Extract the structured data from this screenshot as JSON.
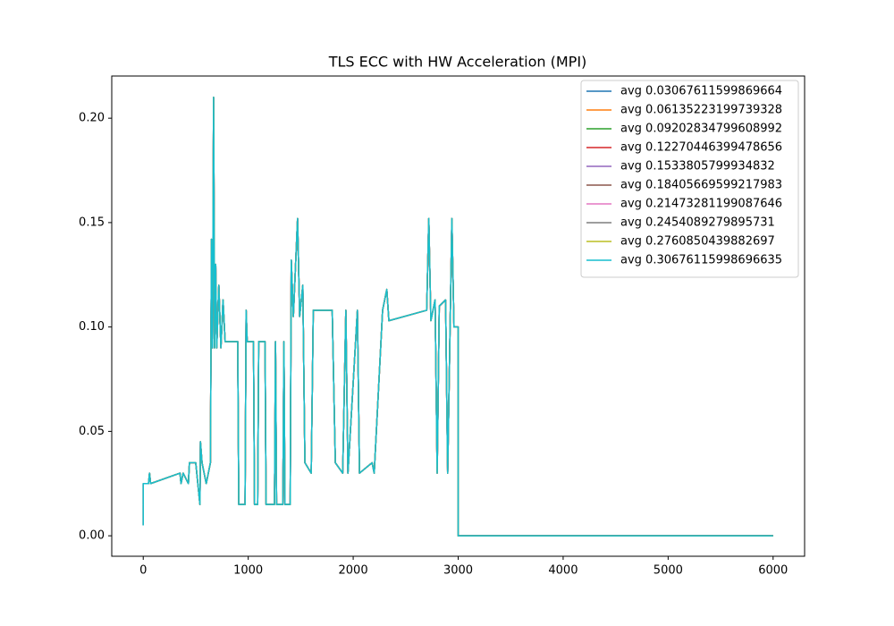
{
  "chart_data": {
    "type": "line",
    "title": "TLS ECC with HW Acceleration (MPI)",
    "x": [
      0,
      0,
      50,
      60,
      70,
      350,
      360,
      380,
      430,
      440,
      500,
      540,
      545,
      560,
      600,
      640,
      650,
      660,
      670,
      680,
      690,
      700,
      720,
      740,
      760,
      780,
      900,
      910,
      970,
      980,
      990,
      1050,
      1060,
      1090,
      1100,
      1160,
      1170,
      1250,
      1260,
      1270,
      1330,
      1340,
      1350,
      1400,
      1410,
      1430,
      1470,
      1490,
      1520,
      1540,
      1600,
      1620,
      1800,
      1830,
      1900,
      1930,
      1950,
      2040,
      2060,
      2180,
      2200,
      2280,
      2320,
      2340,
      2700,
      2720,
      2740,
      2780,
      2800,
      2820,
      2880,
      2900,
      2940,
      2960,
      3000,
      3000,
      6000
    ],
    "series": [
      {
        "name": "avg 0.03067611599869664",
        "color": "#1f77b4",
        "values": [
          0.005,
          0.025,
          0.025,
          0.03,
          0.025,
          0.03,
          0.025,
          0.03,
          0.025,
          0.035,
          0.035,
          0.015,
          0.045,
          0.035,
          0.025,
          0.035,
          0.142,
          0.09,
          0.21,
          0.09,
          0.13,
          0.09,
          0.12,
          0.09,
          0.113,
          0.093,
          0.093,
          0.015,
          0.015,
          0.108,
          0.093,
          0.093,
          0.015,
          0.015,
          0.093,
          0.093,
          0.015,
          0.015,
          0.093,
          0.015,
          0.015,
          0.093,
          0.015,
          0.015,
          0.132,
          0.105,
          0.152,
          0.105,
          0.12,
          0.035,
          0.03,
          0.108,
          0.108,
          0.035,
          0.03,
          0.108,
          0.03,
          0.108,
          0.03,
          0.035,
          0.03,
          0.108,
          0.118,
          0.103,
          0.108,
          0.152,
          0.103,
          0.113,
          0.03,
          0.11,
          0.113,
          0.03,
          0.152,
          0.1,
          0.1,
          0,
          0
        ]
      },
      {
        "name": "avg 0.06135223199739328",
        "color": "#ff7f0e",
        "values": [
          0.005,
          0.025,
          0.025,
          0.03,
          0.025,
          0.03,
          0.025,
          0.03,
          0.025,
          0.035,
          0.035,
          0.015,
          0.045,
          0.035,
          0.025,
          0.035,
          0.142,
          0.09,
          0.21,
          0.09,
          0.13,
          0.09,
          0.12,
          0.09,
          0.113,
          0.093,
          0.093,
          0.015,
          0.015,
          0.108,
          0.093,
          0.093,
          0.015,
          0.015,
          0.093,
          0.093,
          0.015,
          0.015,
          0.093,
          0.015,
          0.015,
          0.093,
          0.015,
          0.015,
          0.132,
          0.105,
          0.152,
          0.105,
          0.12,
          0.035,
          0.03,
          0.108,
          0.108,
          0.035,
          0.03,
          0.108,
          0.03,
          0.108,
          0.03,
          0.035,
          0.03,
          0.108,
          0.118,
          0.103,
          0.108,
          0.152,
          0.103,
          0.113,
          0.03,
          0.11,
          0.113,
          0.03,
          0.152,
          0.1,
          0.1,
          0,
          0
        ]
      },
      {
        "name": "avg 0.09202834799608992",
        "color": "#2ca02c",
        "values": [
          0.005,
          0.025,
          0.025,
          0.03,
          0.025,
          0.03,
          0.025,
          0.03,
          0.025,
          0.035,
          0.035,
          0.015,
          0.045,
          0.035,
          0.025,
          0.035,
          0.142,
          0.09,
          0.21,
          0.09,
          0.13,
          0.09,
          0.12,
          0.09,
          0.113,
          0.093,
          0.093,
          0.015,
          0.015,
          0.108,
          0.093,
          0.093,
          0.015,
          0.015,
          0.093,
          0.093,
          0.015,
          0.015,
          0.093,
          0.015,
          0.015,
          0.093,
          0.015,
          0.015,
          0.132,
          0.105,
          0.152,
          0.105,
          0.12,
          0.035,
          0.03,
          0.108,
          0.108,
          0.035,
          0.03,
          0.108,
          0.03,
          0.108,
          0.03,
          0.035,
          0.03,
          0.108,
          0.118,
          0.103,
          0.108,
          0.152,
          0.103,
          0.113,
          0.03,
          0.11,
          0.113,
          0.03,
          0.152,
          0.1,
          0.1,
          0,
          0
        ]
      },
      {
        "name": "avg 0.12270446399478656",
        "color": "#d62728",
        "values": [
          0.005,
          0.025,
          0.025,
          0.03,
          0.025,
          0.03,
          0.025,
          0.03,
          0.025,
          0.035,
          0.035,
          0.015,
          0.045,
          0.035,
          0.025,
          0.035,
          0.142,
          0.09,
          0.21,
          0.09,
          0.13,
          0.09,
          0.12,
          0.09,
          0.113,
          0.093,
          0.093,
          0.015,
          0.015,
          0.108,
          0.093,
          0.093,
          0.015,
          0.015,
          0.093,
          0.093,
          0.015,
          0.015,
          0.093,
          0.015,
          0.015,
          0.093,
          0.015,
          0.015,
          0.132,
          0.105,
          0.152,
          0.105,
          0.12,
          0.035,
          0.03,
          0.108,
          0.108,
          0.035,
          0.03,
          0.108,
          0.03,
          0.108,
          0.03,
          0.035,
          0.03,
          0.108,
          0.118,
          0.103,
          0.108,
          0.152,
          0.103,
          0.113,
          0.03,
          0.11,
          0.113,
          0.03,
          0.152,
          0.1,
          0.1,
          0,
          0
        ]
      },
      {
        "name": "avg 0.1533805799934832",
        "color": "#9467bd",
        "values": [
          0.005,
          0.025,
          0.025,
          0.03,
          0.025,
          0.03,
          0.025,
          0.03,
          0.025,
          0.035,
          0.035,
          0.015,
          0.045,
          0.035,
          0.025,
          0.035,
          0.142,
          0.09,
          0.21,
          0.09,
          0.13,
          0.09,
          0.12,
          0.09,
          0.113,
          0.093,
          0.093,
          0.015,
          0.015,
          0.108,
          0.093,
          0.093,
          0.015,
          0.015,
          0.093,
          0.093,
          0.015,
          0.015,
          0.093,
          0.015,
          0.015,
          0.093,
          0.015,
          0.015,
          0.132,
          0.105,
          0.152,
          0.105,
          0.12,
          0.035,
          0.03,
          0.108,
          0.108,
          0.035,
          0.03,
          0.108,
          0.03,
          0.108,
          0.03,
          0.035,
          0.03,
          0.108,
          0.118,
          0.103,
          0.108,
          0.152,
          0.103,
          0.113,
          0.03,
          0.11,
          0.113,
          0.03,
          0.152,
          0.1,
          0.1,
          0,
          0
        ]
      },
      {
        "name": "avg 0.18405669599217983",
        "color": "#8c564b",
        "values": [
          0.005,
          0.025,
          0.025,
          0.03,
          0.025,
          0.03,
          0.025,
          0.03,
          0.025,
          0.035,
          0.035,
          0.015,
          0.045,
          0.035,
          0.025,
          0.035,
          0.142,
          0.09,
          0.21,
          0.09,
          0.13,
          0.09,
          0.12,
          0.09,
          0.113,
          0.093,
          0.093,
          0.015,
          0.015,
          0.108,
          0.093,
          0.093,
          0.015,
          0.015,
          0.093,
          0.093,
          0.015,
          0.015,
          0.093,
          0.015,
          0.015,
          0.093,
          0.015,
          0.015,
          0.132,
          0.105,
          0.152,
          0.105,
          0.12,
          0.035,
          0.03,
          0.108,
          0.108,
          0.035,
          0.03,
          0.108,
          0.03,
          0.108,
          0.03,
          0.035,
          0.03,
          0.108,
          0.118,
          0.103,
          0.108,
          0.152,
          0.103,
          0.113,
          0.03,
          0.11,
          0.113,
          0.03,
          0.152,
          0.1,
          0.1,
          0,
          0
        ]
      },
      {
        "name": "avg 0.21473281199087646",
        "color": "#e377c2",
        "values": [
          0.005,
          0.025,
          0.025,
          0.03,
          0.025,
          0.03,
          0.025,
          0.03,
          0.025,
          0.035,
          0.035,
          0.015,
          0.045,
          0.035,
          0.025,
          0.035,
          0.142,
          0.09,
          0.21,
          0.09,
          0.13,
          0.09,
          0.12,
          0.09,
          0.113,
          0.093,
          0.093,
          0.015,
          0.015,
          0.108,
          0.093,
          0.093,
          0.015,
          0.015,
          0.093,
          0.093,
          0.015,
          0.015,
          0.093,
          0.015,
          0.015,
          0.093,
          0.015,
          0.015,
          0.132,
          0.105,
          0.152,
          0.105,
          0.12,
          0.035,
          0.03,
          0.108,
          0.108,
          0.035,
          0.03,
          0.108,
          0.03,
          0.108,
          0.03,
          0.035,
          0.03,
          0.108,
          0.118,
          0.103,
          0.108,
          0.152,
          0.103,
          0.113,
          0.03,
          0.11,
          0.113,
          0.03,
          0.152,
          0.1,
          0.1,
          0,
          0
        ]
      },
      {
        "name": "avg 0.2454089279895731",
        "color": "#7f7f7f",
        "values": [
          0.005,
          0.025,
          0.025,
          0.03,
          0.025,
          0.03,
          0.025,
          0.03,
          0.025,
          0.035,
          0.035,
          0.015,
          0.045,
          0.035,
          0.025,
          0.035,
          0.142,
          0.09,
          0.21,
          0.09,
          0.13,
          0.09,
          0.12,
          0.09,
          0.113,
          0.093,
          0.093,
          0.015,
          0.015,
          0.108,
          0.093,
          0.093,
          0.015,
          0.015,
          0.093,
          0.093,
          0.015,
          0.015,
          0.093,
          0.015,
          0.015,
          0.093,
          0.015,
          0.015,
          0.132,
          0.105,
          0.152,
          0.105,
          0.12,
          0.035,
          0.03,
          0.108,
          0.108,
          0.035,
          0.03,
          0.108,
          0.03,
          0.108,
          0.03,
          0.035,
          0.03,
          0.108,
          0.118,
          0.103,
          0.108,
          0.152,
          0.103,
          0.113,
          0.03,
          0.11,
          0.113,
          0.03,
          0.152,
          0.1,
          0.1,
          0,
          0
        ]
      },
      {
        "name": "avg 0.2760850439882697",
        "color": "#bcbd22",
        "values": [
          0.005,
          0.025,
          0.025,
          0.03,
          0.025,
          0.03,
          0.025,
          0.03,
          0.025,
          0.035,
          0.035,
          0.015,
          0.045,
          0.035,
          0.025,
          0.035,
          0.142,
          0.09,
          0.21,
          0.09,
          0.13,
          0.09,
          0.12,
          0.09,
          0.113,
          0.093,
          0.093,
          0.015,
          0.015,
          0.108,
          0.093,
          0.093,
          0.015,
          0.015,
          0.093,
          0.093,
          0.015,
          0.015,
          0.093,
          0.015,
          0.015,
          0.093,
          0.015,
          0.015,
          0.132,
          0.105,
          0.152,
          0.105,
          0.12,
          0.035,
          0.03,
          0.108,
          0.108,
          0.035,
          0.03,
          0.108,
          0.03,
          0.108,
          0.03,
          0.035,
          0.03,
          0.108,
          0.118,
          0.103,
          0.108,
          0.152,
          0.103,
          0.113,
          0.03,
          0.11,
          0.113,
          0.03,
          0.152,
          0.1,
          0.1,
          0,
          0
        ]
      },
      {
        "name": "avg 0.30676115998696635",
        "color": "#17becf",
        "values": [
          0.005,
          0.025,
          0.025,
          0.03,
          0.025,
          0.03,
          0.025,
          0.03,
          0.025,
          0.035,
          0.035,
          0.015,
          0.045,
          0.035,
          0.025,
          0.035,
          0.142,
          0.09,
          0.21,
          0.09,
          0.13,
          0.09,
          0.12,
          0.09,
          0.113,
          0.093,
          0.093,
          0.015,
          0.015,
          0.108,
          0.093,
          0.093,
          0.015,
          0.015,
          0.093,
          0.093,
          0.015,
          0.015,
          0.093,
          0.015,
          0.015,
          0.093,
          0.015,
          0.015,
          0.132,
          0.105,
          0.152,
          0.105,
          0.12,
          0.035,
          0.03,
          0.108,
          0.108,
          0.035,
          0.03,
          0.108,
          0.03,
          0.108,
          0.03,
          0.035,
          0.03,
          0.108,
          0.118,
          0.103,
          0.108,
          0.152,
          0.103,
          0.113,
          0.03,
          0.11,
          0.113,
          0.03,
          0.152,
          0.1,
          0.1,
          0,
          0
        ]
      }
    ],
    "xlim": [
      -300,
      6300
    ],
    "xticks": [
      0,
      1000,
      2000,
      3000,
      4000,
      5000,
      6000
    ],
    "ylim": [
      -0.0098,
      0.2202
    ],
    "yticks": [
      {
        "value": 0,
        "label": "0.00"
      },
      {
        "value": 0.05,
        "label": "0.05"
      },
      {
        "value": 0.1,
        "label": "0.10"
      },
      {
        "value": 0.15,
        "label": "0.15"
      },
      {
        "value": 0.2,
        "label": "0.20"
      }
    ],
    "legend": "upper right",
    "grid": false
  }
}
